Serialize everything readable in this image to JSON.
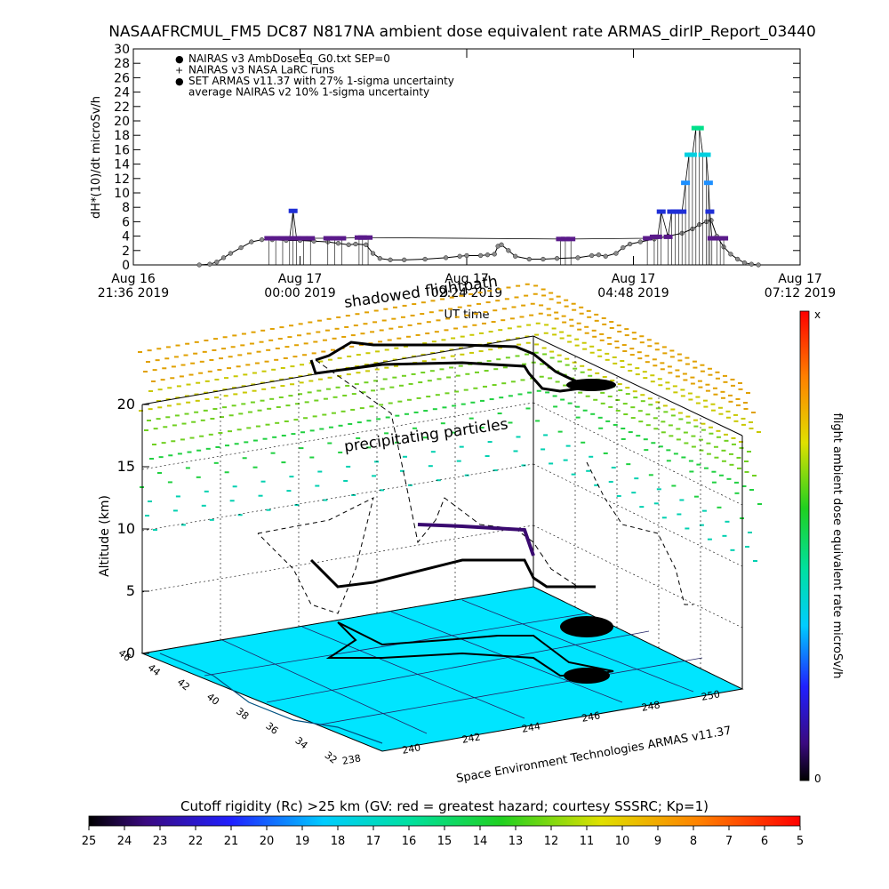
{
  "title": "NASAAFRCMUL_FM5 DC87 N817NA ambient dose equivalent rate ARMAS_dirIP_Report_03440",
  "chart_data": [
    {
      "type": "line",
      "ylabel": "dH*(10)/dt microSv/h",
      "xlabel": "UT time",
      "ylim": [
        0,
        30
      ],
      "yticks": [
        0,
        2,
        4,
        6,
        8,
        10,
        12,
        14,
        16,
        18,
        20,
        22,
        24,
        26,
        28,
        30
      ],
      "xticks": [
        {
          "date": "Aug 16",
          "time": "21:36 2019",
          "hours": 0
        },
        {
          "date": "Aug 17",
          "time": "00:00 2019",
          "hours": 2.4
        },
        {
          "date": "Aug 17",
          "time": "02:24 2019",
          "hours": 4.8
        },
        {
          "date": "Aug 17",
          "time": "04:48 2019",
          "hours": 7.2
        },
        {
          "date": "Aug 17",
          "time": "07:12 2019",
          "hours": 9.6
        }
      ],
      "legend": [
        {
          "symbol": "●",
          "color": "#8c8c8c",
          "label": "NAIRAS v3 AmbDoseEq_G0.txt SEP=0"
        },
        {
          "symbol": "+",
          "color": "#000000",
          "label": "NAIRAS v3 NASA LaRC runs"
        },
        {
          "symbol": "●",
          "color": "#1f2fd6",
          "label": "SET ARMAS v11.37 with 27% 1-sigma uncertainty"
        },
        {
          "symbol": "",
          "color": "#000000",
          "label": "average NAIRAS v2 10% 1-sigma uncertainty"
        }
      ],
      "series": [
        {
          "name": "NAIRAS v3 AmbDoseEq_G0.txt SEP=0",
          "points": [
            [
              0.95,
              0
            ],
            [
              1.1,
              0.1
            ],
            [
              1.2,
              0.4
            ],
            [
              1.3,
              1.0
            ],
            [
              1.4,
              1.6
            ],
            [
              1.55,
              2.4
            ],
            [
              1.7,
              3.2
            ],
            [
              1.85,
              3.5
            ],
            [
              2.0,
              3.5
            ],
            [
              2.2,
              3.4
            ],
            [
              2.4,
              3.4
            ],
            [
              2.6,
              3.3
            ],
            [
              2.8,
              3.2
            ],
            [
              2.95,
              3.0
            ],
            [
              3.1,
              2.8
            ],
            [
              3.2,
              2.9
            ],
            [
              3.35,
              2.8
            ],
            [
              3.45,
              1.6
            ],
            [
              3.55,
              0.9
            ],
            [
              3.7,
              0.7
            ],
            [
              3.9,
              0.7
            ],
            [
              4.2,
              0.8
            ],
            [
              4.5,
              1.0
            ],
            [
              4.7,
              1.2
            ],
            [
              4.8,
              1.3
            ],
            [
              5.0,
              1.3
            ],
            [
              5.1,
              1.4
            ],
            [
              5.2,
              1.5
            ],
            [
              5.25,
              2.6
            ],
            [
              5.3,
              2.8
            ],
            [
              5.4,
              2.0
            ],
            [
              5.5,
              1.2
            ],
            [
              5.7,
              0.8
            ],
            [
              5.9,
              0.8
            ],
            [
              6.1,
              0.9
            ],
            [
              6.4,
              1.0
            ],
            [
              6.6,
              1.3
            ],
            [
              6.7,
              1.4
            ],
            [
              6.8,
              1.2
            ],
            [
              6.95,
              1.6
            ],
            [
              7.05,
              2.4
            ],
            [
              7.15,
              2.9
            ],
            [
              7.3,
              3.2
            ],
            [
              7.5,
              3.6
            ],
            [
              7.7,
              4.0
            ],
            [
              7.9,
              4.4
            ],
            [
              8.05,
              5.0
            ],
            [
              8.15,
              5.6
            ],
            [
              8.25,
              6.0
            ],
            [
              8.32,
              6.2
            ],
            [
              8.4,
              4.0
            ],
            [
              8.5,
              2.5
            ],
            [
              8.6,
              1.5
            ],
            [
              8.7,
              0.8
            ],
            [
              8.8,
              0.3
            ],
            [
              8.9,
              0.1
            ],
            [
              9.0,
              0
            ]
          ]
        },
        {
          "name": "SET ARMAS v11.37 with 27% 1-sigma uncertainty",
          "points": [
            [
              1.95,
              3.7
            ],
            [
              2.05,
              3.7
            ],
            [
              2.15,
              3.7
            ],
            [
              2.25,
              3.7
            ],
            [
              2.3,
              7.5
            ],
            [
              2.35,
              3.7
            ],
            [
              2.45,
              3.7
            ],
            [
              2.55,
              3.7
            ],
            [
              2.8,
              3.7
            ],
            [
              2.9,
              3.7
            ],
            [
              3.0,
              3.7
            ],
            [
              3.25,
              3.8
            ],
            [
              3.3,
              3.8
            ],
            [
              3.38,
              3.8
            ],
            [
              6.15,
              3.6
            ],
            [
              6.22,
              3.6
            ],
            [
              6.3,
              3.6
            ],
            [
              7.4,
              3.7
            ],
            [
              7.5,
              3.9
            ],
            [
              7.55,
              3.9
            ],
            [
              7.6,
              7.4
            ],
            [
              7.7,
              3.9
            ],
            [
              7.75,
              7.4
            ],
            [
              7.8,
              7.4
            ],
            [
              7.85,
              7.4
            ],
            [
              7.9,
              7.4
            ],
            [
              7.95,
              11.4
            ],
            [
              8.0,
              15.3
            ],
            [
              8.05,
              15.3
            ],
            [
              8.1,
              19.0
            ],
            [
              8.15,
              19.0
            ],
            [
              8.2,
              15.3
            ],
            [
              8.25,
              15.3
            ],
            [
              8.28,
              11.4
            ],
            [
              8.3,
              7.4
            ],
            [
              8.33,
              3.7
            ],
            [
              8.4,
              3.7
            ],
            [
              8.45,
              3.7
            ],
            [
              8.5,
              3.7
            ]
          ]
        }
      ]
    },
    {
      "type": "scatter",
      "title": "",
      "ylabel": "Altitude (km)",
      "zticks": [
        0,
        5,
        10,
        15,
        20
      ],
      "lat_ticks": [
        32,
        34,
        36,
        38,
        40,
        42,
        44,
        46
      ],
      "lon_ticks": [
        238,
        240,
        242,
        244,
        246,
        248,
        250
      ],
      "annotations": [
        "shadowed flightpath",
        "precipitating particles",
        "Space Environment Technologies ARMAS v11.37"
      ],
      "colorbar": {
        "label": "flight ambient dose equivalent rate microSv/h",
        "top": "x",
        "bottom": "0"
      },
      "bottom_colorbar": {
        "label": "Cutoff rigidity (Rc) >25 km (GV: red = greatest hazard; courtesy SSSRC; Kp=1)",
        "ticks": [
          25,
          24,
          23,
          22,
          21,
          20,
          19,
          18,
          17,
          16,
          15,
          14,
          13,
          12,
          11,
          10,
          9,
          8,
          7,
          6,
          5
        ]
      },
      "colors": {
        "ground": "#00e5ff",
        "flight": "#000000",
        "flight_high": "#3a0a70"
      }
    }
  ]
}
